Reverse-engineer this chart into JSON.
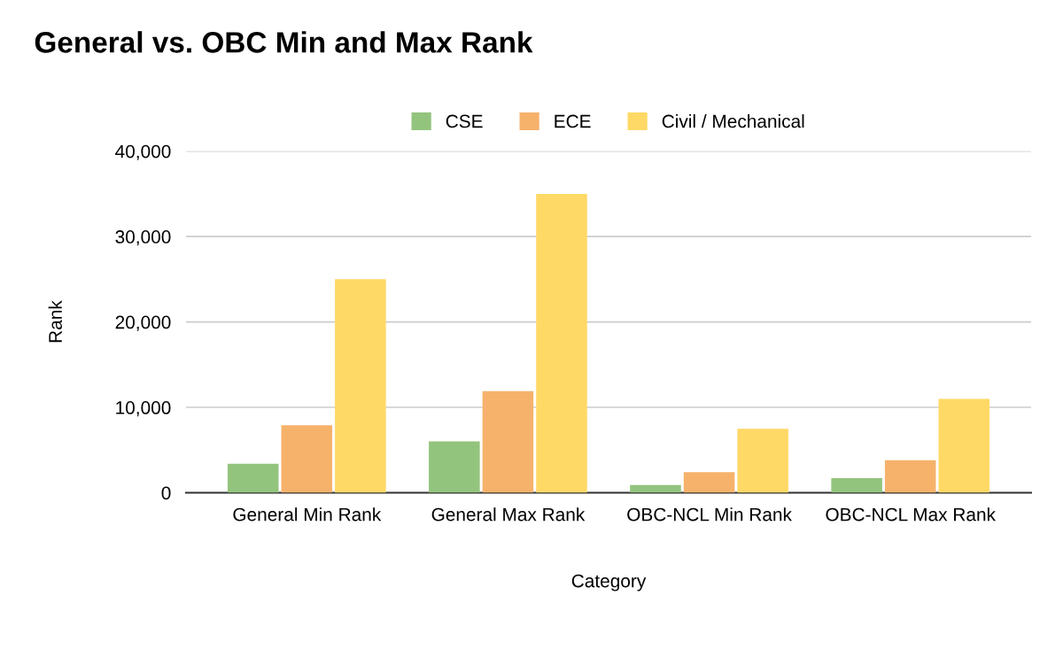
{
  "chart_data": {
    "type": "bar",
    "title": "General vs. OBC Min and Max Rank",
    "xlabel": "Category",
    "ylabel": "Rank",
    "categories": [
      "General Min Rank",
      "General Max Rank",
      "OBC-NCL Min Rank",
      "OBC-NCL Max Rank"
    ],
    "series": [
      {
        "name": "CSE",
        "color": "#93c47d",
        "values": [
          3400,
          6000,
          900,
          1700
        ]
      },
      {
        "name": "ECE",
        "color": "#f6b26b",
        "values": [
          7900,
          11900,
          2400,
          3800
        ]
      },
      {
        "name": "Civil / Mechanical",
        "color": "#ffd966",
        "values": [
          25000,
          35000,
          7500,
          11000
        ]
      }
    ],
    "ylim": [
      0,
      40000
    ],
    "yticks": [
      0,
      {
        "value": 10000,
        "label": "10,000"
      },
      {
        "value": 20000,
        "label": "20,000"
      },
      {
        "value": 30000,
        "label": "30,000"
      },
      {
        "value": 40000,
        "label": "40,000"
      }
    ],
    "grid": "y",
    "legend": "top"
  }
}
